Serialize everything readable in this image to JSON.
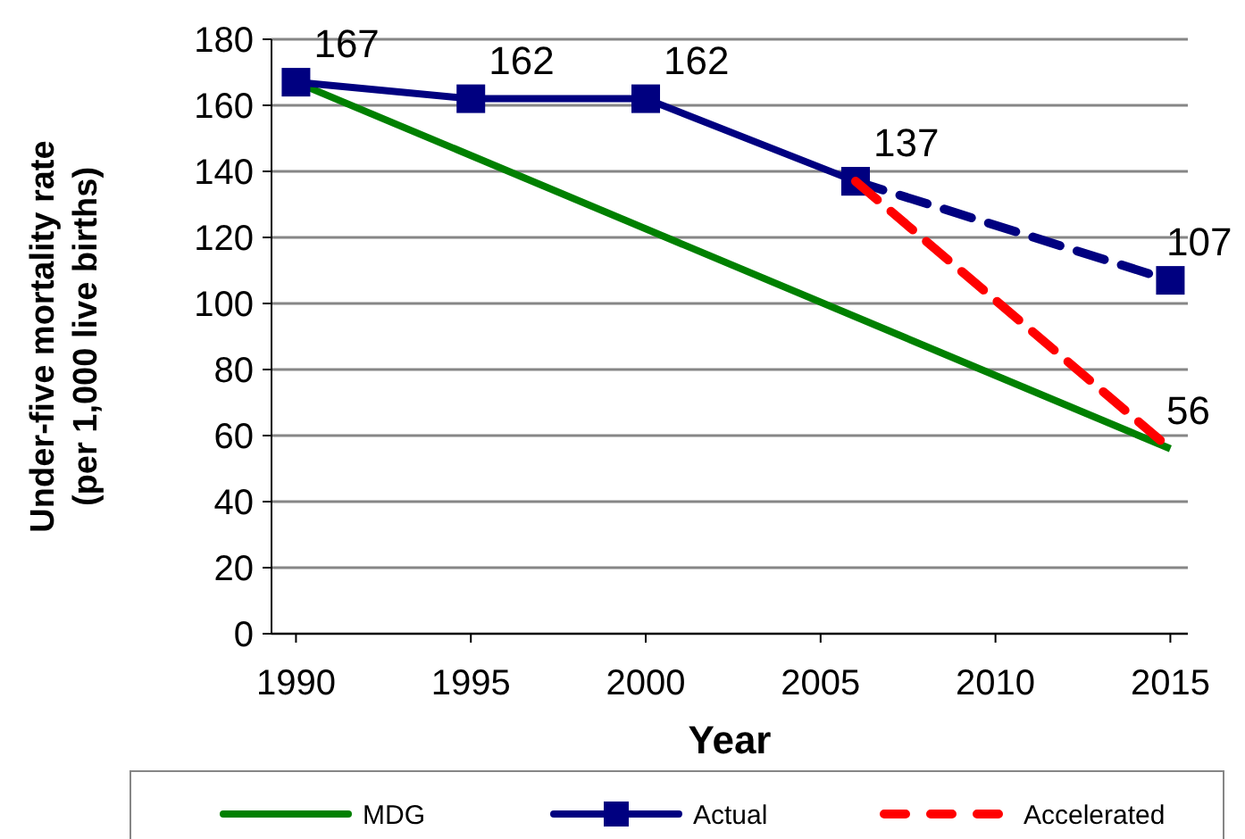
{
  "chart_data": {
    "type": "line",
    "xlabel": "Year",
    "ylabel": "Under-five mortality rate\n(per 1,000 live births)",
    "xlim": [
      1989.3,
      2015.5
    ],
    "xticks": [
      1990,
      1995,
      2000,
      2005,
      2010,
      2015
    ],
    "ylim": [
      0,
      180
    ],
    "yticks": [
      0,
      20,
      40,
      60,
      80,
      100,
      120,
      140,
      160,
      180
    ],
    "grid": "y",
    "legend": "bottom",
    "series": [
      {
        "name": "MDG",
        "color": "#008000",
        "x": [
          1990,
          2015
        ],
        "values": [
          167,
          56
        ],
        "line_style": "solid",
        "marker": "none",
        "value_labels": [
          null,
          "56"
        ]
      },
      {
        "name": "Actual",
        "color": "#000080",
        "x": [
          1990,
          1995,
          2000,
          2006
        ],
        "values": [
          167,
          162,
          162,
          137
        ],
        "line_style": "solid",
        "marker": "square",
        "value_labels": [
          "167",
          "162",
          "162",
          "137"
        ]
      },
      {
        "color": "#000080",
        "x": [
          2006,
          2015
        ],
        "values": [
          137,
          107
        ],
        "line_style": "dashed",
        "marker": "square",
        "value_labels": [
          null,
          "107"
        ]
      },
      {
        "name": "Accelerated",
        "color": "#ff0000",
        "x": [
          2006,
          2015
        ],
        "values": [
          137,
          56
        ],
        "line_style": "dashed",
        "marker": "none"
      }
    ]
  }
}
